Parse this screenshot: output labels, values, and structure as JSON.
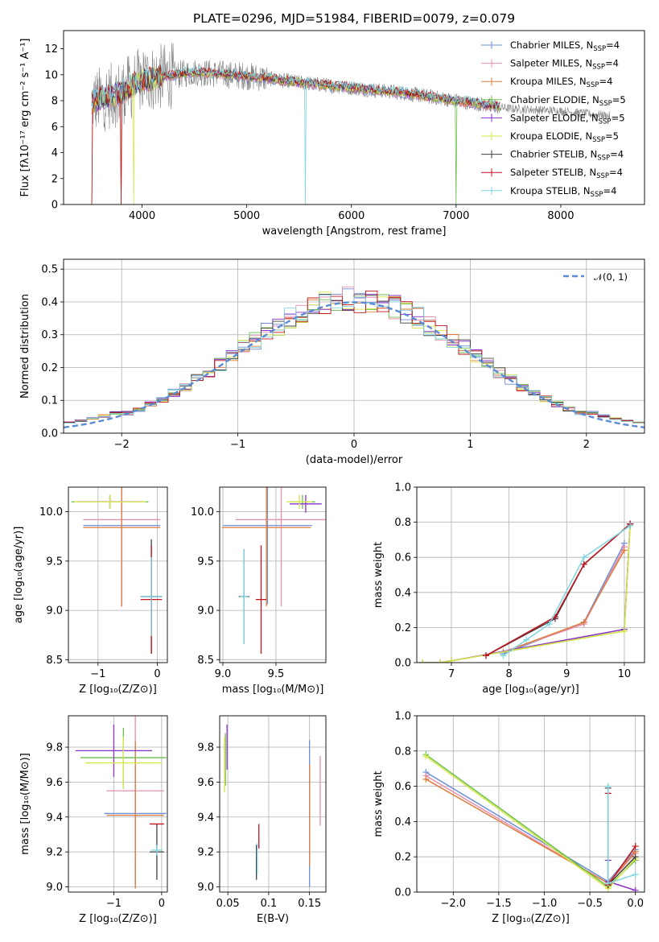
{
  "figure": {
    "title": "PLATE=0296, MJD=51984, FIBERID=0079, z=0.079"
  },
  "colors": {
    "Chabrier MILES": "#6a8fd8",
    "Salpeter MILES": "#e88fb0",
    "Kroupa MILES": "#e07d3c",
    "Chabrier ELODIE": "#6cbf4a",
    "Salpeter ELODIE": "#8b2fc9",
    "Kroupa ELODIE": "#d6e64a",
    "Chabrier STELIB": "#404040",
    "Salpeter STELIB": "#c0141e",
    "Kroupa STELIB": "#7fd4e0",
    "data": "#808080",
    "gaussian": "#5b8bd4",
    "grid": "#b0b0b0"
  },
  "chart_data": [
    {
      "id": "spectrum",
      "type": "line",
      "title": "PLATE=0296, MJD=51984, FIBERID=0079, z=0.079",
      "xlabel": "wavelength [Angstrom, rest frame]",
      "ylabel": "Flux [fλ10⁻¹⁷ erg cm⁻² s⁻¹ A⁻¹]",
      "xlim": [
        3250,
        8800
      ],
      "ylim": [
        0,
        13.4
      ],
      "xticks": [
        4000,
        5000,
        6000,
        7000,
        8000
      ],
      "yticks": [
        0,
        2,
        4,
        6,
        8,
        10,
        12
      ],
      "grid": false,
      "legend_position": "top-right",
      "legend": [
        {
          "main": "Chabrier MILES, N",
          "sub": "SSP",
          "tail": "=4"
        },
        {
          "main": "Salpeter MILES, N",
          "sub": "SSP",
          "tail": "=4"
        },
        {
          "main": "Kroupa MILES, N",
          "sub": "SSP",
          "tail": "=4"
        },
        {
          "main": "Chabrier ELODIE, N",
          "sub": "SSP",
          "tail": "=5"
        },
        {
          "main": "Salpeter ELODIE, N",
          "sub": "SSP",
          "tail": "=5"
        },
        {
          "main": "Kroupa ELODIE, N",
          "sub": "SSP",
          "tail": "=5"
        },
        {
          "main": "Chabrier STELIB, N",
          "sub": "SSP",
          "tail": "=4"
        },
        {
          "main": "Salpeter STELIB, N",
          "sub": "SSP",
          "tail": "=4"
        },
        {
          "main": "Kroupa STELIB, N",
          "sub": "SSP",
          "tail": "=4"
        }
      ],
      "continuum_anchor_points": {
        "x": [
          3520,
          3800,
          4000,
          4500,
          5000,
          5500,
          6000,
          6500,
          7000,
          7500,
          8000,
          8500
        ],
        "y": [
          7.9,
          8.6,
          9.6,
          10.2,
          9.9,
          9.4,
          9.0,
          8.6,
          8.0,
          7.4,
          7.2,
          6.8
        ]
      },
      "model_range": [
        3520,
        7420
      ],
      "data_range": [
        3520,
        8470
      ]
    },
    {
      "id": "residuals",
      "type": "line",
      "xlabel": "(data-model)/error",
      "ylabel": "Normed distribution",
      "xlim": [
        -2.5,
        2.5
      ],
      "ylim": [
        0,
        0.53
      ],
      "xticks": [
        -2,
        -1,
        0,
        1,
        2
      ],
      "yticks": [
        0.0,
        0.1,
        0.2,
        0.3,
        0.4,
        0.5
      ],
      "grid": true,
      "legend_position": "top-right",
      "legend_label": "𝒩(0, 1)",
      "bin_width": 0.1,
      "bin_range": [
        -2.5,
        2.5
      ]
    },
    {
      "id": "age-vs-Z",
      "type": "scatter",
      "xlabel": "Z [log₁₀(Z/Z⊙)]",
      "ylabel": "age  [log₁₀(age/yr)]",
      "xlim": [
        -1.5,
        0.17
      ],
      "ylim": [
        8.47,
        10.25
      ],
      "xticks": [
        -1,
        0
      ],
      "yticks": [
        8.5,
        9.0,
        9.5,
        10.0
      ],
      "grid": true,
      "series": [
        {
          "model": "Chabrier MILES",
          "x": -0.6,
          "xerr": 0.65,
          "y": 9.86,
          "yerr": 0.82
        },
        {
          "model": "Salpeter MILES",
          "x": -0.6,
          "xerr": 0.65,
          "y": 9.92,
          "yerr": 0.88
        },
        {
          "model": "Kroupa MILES",
          "x": -0.6,
          "xerr": 0.65,
          "y": 9.84,
          "yerr": 0.8
        },
        {
          "model": "Chabrier ELODIE",
          "x": -0.8,
          "xerr": 0.65,
          "y": 10.1,
          "yerr": 0.07
        },
        {
          "model": "Salpeter ELODIE",
          "x": -0.8,
          "xerr": 0.55,
          "y": 10.1,
          "yerr": 0.07
        },
        {
          "model": "Kroupa ELODIE",
          "x": -0.8,
          "xerr": 0.6,
          "y": 10.1,
          "yerr": 0.07
        },
        {
          "model": "Chabrier STELIB",
          "x": -0.1,
          "xerr": 0.18,
          "y": 9.14,
          "yerr": 0.58
        },
        {
          "model": "Salpeter STELIB",
          "x": -0.1,
          "xerr": 0.18,
          "y": 9.11,
          "yerr": 0.55
        },
        {
          "model": "Kroupa STELIB",
          "x": -0.1,
          "xerr": 0.18,
          "y": 9.14,
          "yerr": 0.4
        }
      ]
    },
    {
      "id": "age-vs-mass",
      "type": "scatter",
      "xlabel": "mass [log₁₀(M/M⊙)]",
      "ylabel": "",
      "xlim": [
        8.97,
        9.97
      ],
      "ylim": [
        8.47,
        10.25
      ],
      "xticks": [
        9.0,
        9.5
      ],
      "yticks": [
        8.5,
        9.0,
        9.5,
        10.0
      ],
      "grid": true,
      "series": [
        {
          "model": "Chabrier MILES",
          "x": 9.42,
          "xerr": 0.42,
          "y": 9.86,
          "yerr": 0.8
        },
        {
          "model": "Salpeter MILES",
          "x": 9.55,
          "xerr": 0.43,
          "y": 9.92,
          "yerr": 0.88
        },
        {
          "model": "Kroupa MILES",
          "x": 9.41,
          "xerr": 0.42,
          "y": 9.84,
          "yerr": 0.8
        },
        {
          "model": "Chabrier ELODIE",
          "x": 9.75,
          "xerr": 0.12,
          "y": 10.1,
          "yerr": 0.07
        },
        {
          "model": "Salpeter ELODIE",
          "x": 9.78,
          "xerr": 0.15,
          "y": 10.08,
          "yerr": 0.09
        },
        {
          "model": "Kroupa ELODIE",
          "x": 9.72,
          "xerr": 0.12,
          "y": 10.1,
          "yerr": 0.07
        },
        {
          "model": "Chabrier STELIB",
          "x": 9.2,
          "xerr": 0.05,
          "y": 9.14,
          "yerr": 0.48
        },
        {
          "model": "Salpeter STELIB",
          "x": 9.36,
          "xerr": 0.05,
          "y": 9.11,
          "yerr": 0.55
        },
        {
          "model": "Kroupa STELIB",
          "x": 9.2,
          "xerr": 0.04,
          "y": 9.14,
          "yerr": 0.48
        }
      ]
    },
    {
      "id": "mass-weight-vs-age",
      "type": "line",
      "xlabel": "age  [log₁₀(age/yr)]",
      "ylabel": "mass weight",
      "xlim": [
        6.4,
        10.35
      ],
      "ylim": [
        0,
        1.0
      ],
      "xticks": [
        7,
        8,
        9,
        10
      ],
      "yticks": [
        0.0,
        0.2,
        0.4,
        0.6,
        0.8,
        1.0
      ],
      "grid": true,
      "series": [
        {
          "model": "Chabrier MILES",
          "x": [
            7.9,
            9.3,
            10.0
          ],
          "y": [
            0.05,
            0.23,
            0.68
          ]
        },
        {
          "model": "Salpeter MILES",
          "x": [
            7.9,
            9.3,
            10.0
          ],
          "y": [
            0.06,
            0.22,
            0.66
          ]
        },
        {
          "model": "Kroupa MILES",
          "x": [
            7.9,
            9.3,
            10.0
          ],
          "y": [
            0.06,
            0.23,
            0.64
          ]
        },
        {
          "model": "Chabrier ELODIE",
          "x": [
            6.5,
            6.8,
            7.0,
            10.0,
            10.1
          ],
          "y": [
            0.0,
            0.0,
            0.01,
            0.18,
            0.78
          ]
        },
        {
          "model": "Salpeter ELODIE",
          "x": [
            6.5,
            6.8,
            7.0,
            10.0,
            10.1
          ],
          "y": [
            0.0,
            0.0,
            0.01,
            0.19,
            0.79
          ]
        },
        {
          "model": "Kroupa ELODIE",
          "x": [
            6.5,
            6.8,
            7.0,
            10.0,
            10.1
          ],
          "y": [
            0.0,
            0.0,
            0.01,
            0.18,
            0.78
          ]
        },
        {
          "model": "Chabrier STELIB",
          "x": [
            7.6,
            8.8,
            9.3,
            10.1
          ],
          "y": [
            0.04,
            0.25,
            0.56,
            0.79
          ]
        },
        {
          "model": "Salpeter STELIB",
          "x": [
            7.6,
            8.8,
            9.3,
            10.1
          ],
          "y": [
            0.04,
            0.26,
            0.56,
            0.79
          ]
        },
        {
          "model": "Kroupa STELIB",
          "x": [
            7.9,
            8.3,
            8.7,
            9.3,
            10.1
          ],
          "y": [
            0.04,
            0.13,
            0.22,
            0.6,
            0.78
          ]
        }
      ]
    },
    {
      "id": "mass-vs-Z",
      "type": "scatter",
      "xlabel": "Z [log₁₀(Z/Z⊙)]",
      "ylabel": "mass [log₁₀(M/M⊙)]",
      "xlim": [
        -1.95,
        0.12
      ],
      "ylim": [
        8.97,
        9.98
      ],
      "xticks": [
        -1,
        0
      ],
      "yticks": [
        9.0,
        9.2,
        9.4,
        9.6,
        9.8
      ],
      "grid": true,
      "series": [
        {
          "model": "Chabrier MILES",
          "x": -0.55,
          "xerr": 0.65,
          "y": 9.42,
          "yerr": 0.42
        },
        {
          "model": "Salpeter MILES",
          "x": -0.55,
          "xerr": 0.6,
          "y": 9.55,
          "yerr": 0.43
        },
        {
          "model": "Kroupa MILES",
          "x": -0.55,
          "xerr": 0.6,
          "y": 9.41,
          "yerr": 0.42
        },
        {
          "model": "Chabrier ELODIE",
          "x": -0.8,
          "xerr": 0.9,
          "y": 9.74,
          "yerr": 0.17
        },
        {
          "model": "Salpeter ELODIE",
          "x": -1.0,
          "xerr": 0.8,
          "y": 9.78,
          "yerr": 0.15
        },
        {
          "model": "Kroupa ELODIE",
          "x": -0.8,
          "xerr": 0.8,
          "y": 9.71,
          "yerr": 0.15
        },
        {
          "model": "Chabrier STELIB",
          "x": -0.1,
          "xerr": 0.15,
          "y": 9.2,
          "yerr": 0.16
        },
        {
          "model": "Salpeter STELIB",
          "x": -0.1,
          "xerr": 0.15,
          "y": 9.36,
          "yerr": 0.0
        },
        {
          "model": "Kroupa STELIB",
          "x": -0.1,
          "xerr": 0.12,
          "y": 9.21,
          "yerr": 0.03
        }
      ]
    },
    {
      "id": "mass-vs-EBV",
      "type": "scatter",
      "xlabel": "E(B-V)",
      "ylabel": "",
      "xlim": [
        0.04,
        0.17
      ],
      "ylim": [
        8.97,
        9.98
      ],
      "xticks": [
        0.05,
        0.1,
        0.15
      ],
      "yticks": [
        9.0,
        9.2,
        9.4,
        9.6,
        9.8
      ],
      "grid": true,
      "series": [
        {
          "model": "Chabrier MILES",
          "x": 0.15,
          "y": 9.42,
          "yerr": 0.42
        },
        {
          "model": "Salpeter MILES",
          "x": 0.163,
          "y": 9.55,
          "yerr": 0.2
        },
        {
          "model": "Kroupa MILES",
          "x": 0.15,
          "y": 9.41,
          "yerr": 0.29
        },
        {
          "model": "Chabrier ELODIE",
          "x": 0.047,
          "y": 9.73,
          "yerr": 0.15
        },
        {
          "model": "Salpeter ELODIE",
          "x": 0.049,
          "y": 9.8,
          "yerr": 0.13
        },
        {
          "model": "Kroupa ELODIE",
          "x": 0.046,
          "y": 9.7,
          "yerr": 0.16
        },
        {
          "model": "Chabrier STELIB",
          "x": 0.085,
          "y": 9.14,
          "yerr": 0.1
        },
        {
          "model": "Salpeter STELIB",
          "x": 0.088,
          "y": 9.29,
          "yerr": 0.07
        },
        {
          "model": "Kroupa STELIB",
          "x": 0.086,
          "y": 9.16,
          "yerr": 0.09
        }
      ]
    },
    {
      "id": "mass-weight-vs-Z",
      "type": "line",
      "xlabel": "Z [log₁₀(Z/Z⊙)]",
      "ylabel": "mass weight",
      "xlim": [
        -2.4,
        0.1
      ],
      "ylim": [
        0,
        1.0
      ],
      "xticks": [
        -2.0,
        -1.5,
        -1.0,
        -0.5,
        0.0
      ],
      "yticks": [
        0.0,
        0.2,
        0.4,
        0.6,
        0.8,
        1.0
      ],
      "grid": true,
      "series": [
        {
          "model": "Chabrier MILES",
          "x": [
            -2.3,
            -0.3,
            0.0
          ],
          "y": [
            0.68,
            0.06,
            0.24
          ]
        },
        {
          "model": "Salpeter MILES",
          "x": [
            -2.3,
            -0.3,
            0.0
          ],
          "y": [
            0.66,
            0.05,
            0.22
          ]
        },
        {
          "model": "Kroupa MILES",
          "x": [
            -2.3,
            -0.3,
            0.0
          ],
          "y": [
            0.64,
            0.05,
            0.23
          ]
        },
        {
          "model": "Chabrier ELODIE",
          "x": [
            -2.3,
            -0.3,
            0.0
          ],
          "y": [
            0.78,
            0.03,
            0.18
          ]
        },
        {
          "model": "Salpeter ELODIE",
          "x": [
            -0.3,
            -0.3,
            0.0
          ],
          "y": [
            0.18,
            0.06,
            0.01
          ]
        },
        {
          "model": "Kroupa ELODIE",
          "x": [
            -2.3,
            -0.3,
            0.0
          ],
          "y": [
            0.77,
            0.02,
            0.19
          ]
        },
        {
          "model": "Chabrier STELIB",
          "x": [
            -0.3,
            -0.3,
            0.0
          ],
          "y": [
            0.59,
            0.04,
            0.2
          ]
        },
        {
          "model": "Salpeter STELIB",
          "x": [
            -0.3,
            -0.3,
            0.0
          ],
          "y": [
            0.56,
            0.04,
            0.26
          ]
        },
        {
          "model": "Kroupa STELIB",
          "x": [
            -0.3,
            -0.3,
            0.0
          ],
          "y": [
            0.6,
            0.05,
            0.1
          ]
        }
      ]
    }
  ]
}
